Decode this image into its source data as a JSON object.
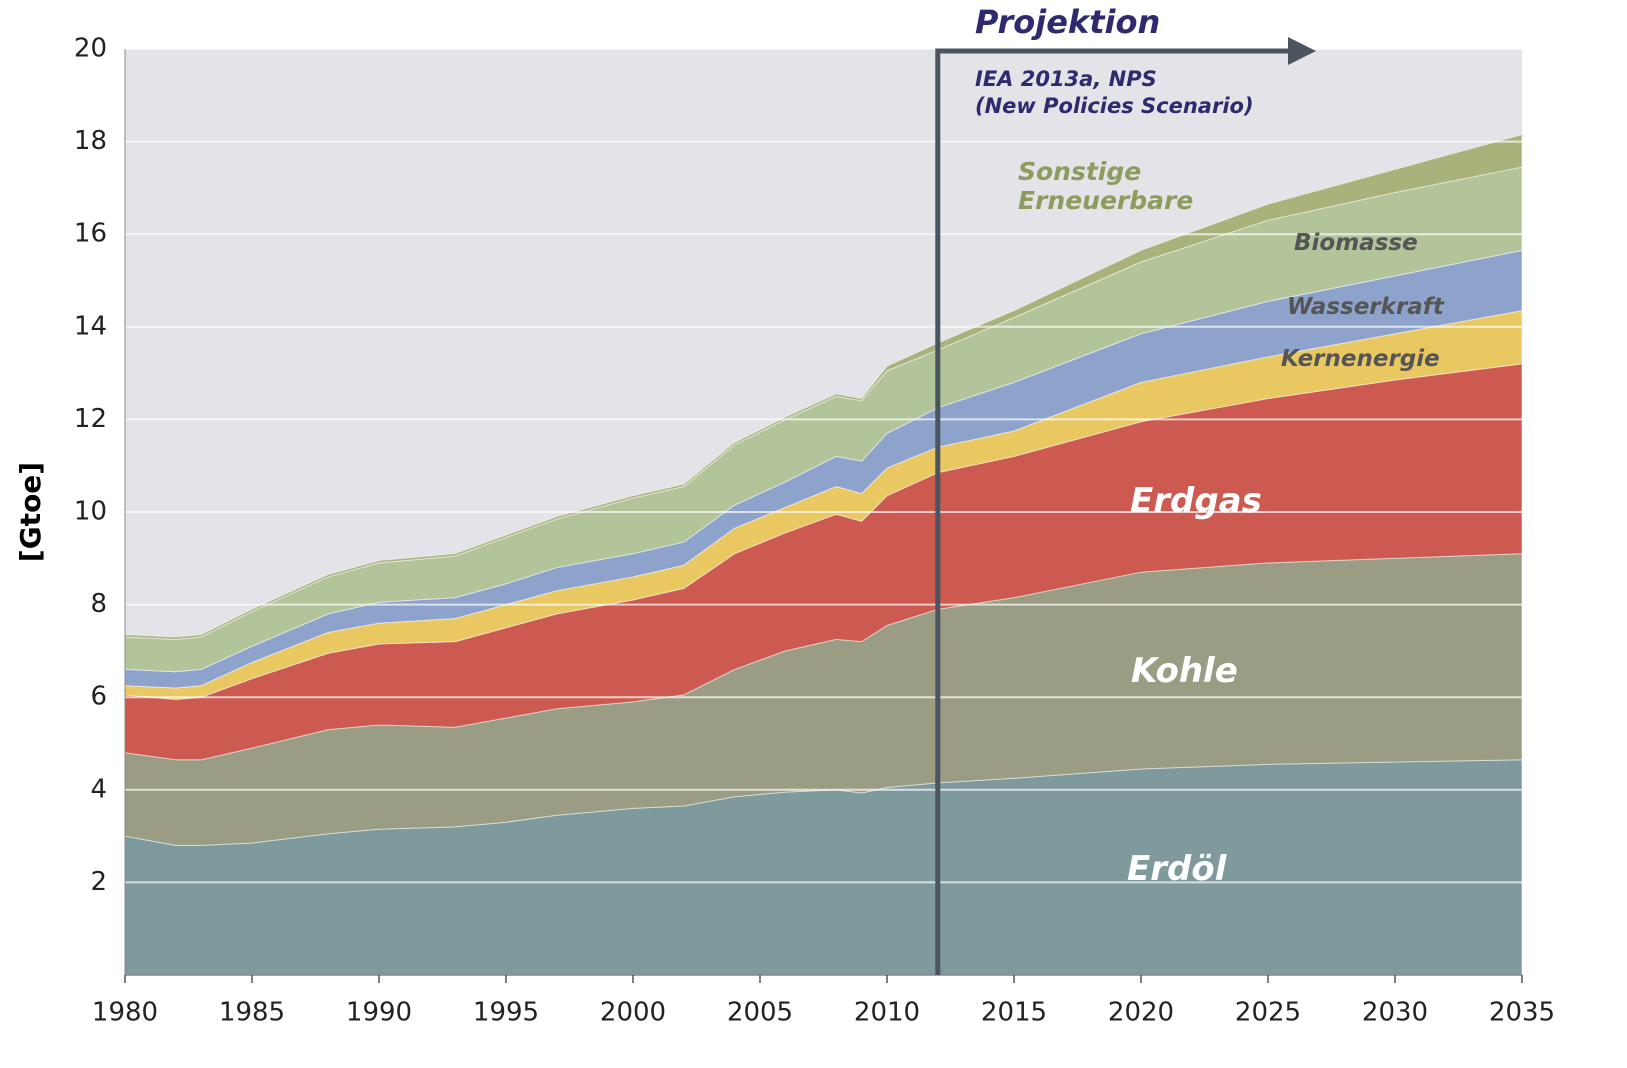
{
  "chart_data": {
    "type": "stacked_area",
    "y_label": "[Gtoe]",
    "annotation_title": "Projektion",
    "annotation_source": "IEA 2013a, NPS",
    "annotation_scenario": "(New Policies Scenario)",
    "projection_start": 2012,
    "x": [
      1980,
      1982,
      1983,
      1985,
      1988,
      1990,
      1993,
      1995,
      1997,
      2000,
      2002,
      2004,
      2006,
      2008,
      2009,
      2010,
      2012,
      2015,
      2020,
      2025,
      2030,
      2035
    ],
    "xlim": [
      1980,
      2035
    ],
    "xticks": [
      1980,
      1985,
      1990,
      1995,
      2000,
      2005,
      2010,
      2015,
      2020,
      2025,
      2030,
      2035
    ],
    "ylim": [
      0,
      20
    ],
    "yticks": [
      2,
      4,
      6,
      8,
      10,
      12,
      14,
      16,
      18,
      20
    ],
    "grid": true,
    "series": [
      {
        "name": "Erdöl",
        "color": "#7e9a9c",
        "values": [
          3.0,
          2.8,
          2.8,
          2.85,
          3.05,
          3.15,
          3.2,
          3.3,
          3.45,
          3.6,
          3.65,
          3.85,
          3.95,
          4.0,
          3.93,
          4.05,
          4.15,
          4.25,
          4.45,
          4.55,
          4.6,
          4.65
        ]
      },
      {
        "name": "Kohle",
        "color": "#9b9c84",
        "values": [
          1.8,
          1.85,
          1.85,
          2.05,
          2.25,
          2.25,
          2.15,
          2.25,
          2.3,
          2.3,
          2.4,
          2.75,
          3.05,
          3.25,
          3.27,
          3.5,
          3.75,
          3.9,
          4.25,
          4.35,
          4.4,
          4.45
        ]
      },
      {
        "name": "Erdgas",
        "color": "#cc5a50",
        "values": [
          1.25,
          1.3,
          1.35,
          1.5,
          1.65,
          1.75,
          1.85,
          1.95,
          2.05,
          2.2,
          2.3,
          2.5,
          2.55,
          2.7,
          2.6,
          2.8,
          2.95,
          3.05,
          3.25,
          3.55,
          3.85,
          4.1
        ]
      },
      {
        "name": "Kernenergie",
        "color": "#e9c862",
        "values": [
          0.2,
          0.25,
          0.25,
          0.35,
          0.45,
          0.45,
          0.5,
          0.5,
          0.5,
          0.5,
          0.5,
          0.55,
          0.55,
          0.6,
          0.6,
          0.6,
          0.55,
          0.55,
          0.85,
          0.9,
          1.0,
          1.15
        ]
      },
      {
        "name": "Wasserkraft",
        "color": "#8ea3cc",
        "values": [
          0.35,
          0.35,
          0.35,
          0.35,
          0.4,
          0.45,
          0.45,
          0.45,
          0.5,
          0.5,
          0.5,
          0.5,
          0.55,
          0.65,
          0.7,
          0.75,
          0.85,
          1.05,
          1.05,
          1.2,
          1.25,
          1.3
        ]
      },
      {
        "name": "Biomasse",
        "color": "#b3c49a",
        "values": [
          0.7,
          0.7,
          0.7,
          0.75,
          0.8,
          0.85,
          0.9,
          1.0,
          1.05,
          1.2,
          1.2,
          1.3,
          1.35,
          1.3,
          1.3,
          1.35,
          1.25,
          1.4,
          1.55,
          1.75,
          1.8,
          1.8
        ]
      },
      {
        "name": "Sonstige Erneuerbare",
        "color": "#a9b27a",
        "values": [
          0.05,
          0.05,
          0.05,
          0.05,
          0.05,
          0.05,
          0.05,
          0.05,
          0.05,
          0.05,
          0.05,
          0.05,
          0.05,
          0.05,
          0.05,
          0.1,
          0.15,
          0.15,
          0.25,
          0.35,
          0.5,
          0.7
        ]
      }
    ]
  }
}
